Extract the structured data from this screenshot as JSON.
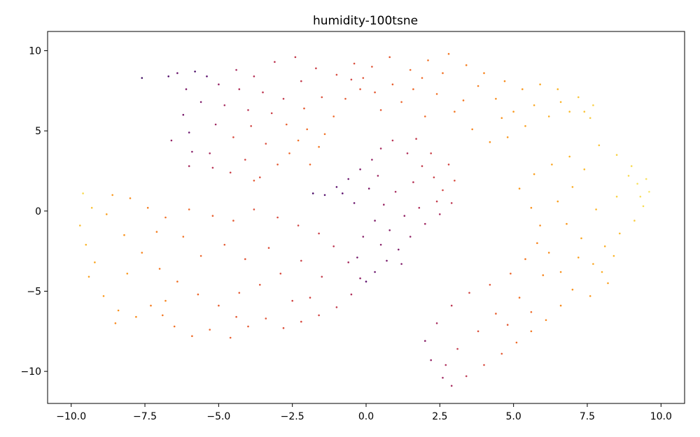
{
  "chart_data": {
    "type": "scatter",
    "title": "humidity-100tsne",
    "xlabel": "",
    "ylabel": "",
    "xlim": [
      -10.8,
      10.8
    ],
    "ylim": [
      -12.0,
      11.2
    ],
    "x_ticks": [
      -10.0,
      -7.5,
      -5.0,
      -2.5,
      0.0,
      2.5,
      5.0,
      7.5,
      10.0
    ],
    "x_tick_labels": [
      "−10.0",
      "−7.5",
      "−5.0",
      "−2.5",
      "0.0",
      "2.5",
      "5.0",
      "7.5",
      "10.0"
    ],
    "y_ticks": [
      -10,
      -5,
      0,
      5,
      10
    ],
    "y_tick_labels": [
      "−10",
      "−5",
      "0",
      "5",
      "10"
    ],
    "grid": false,
    "legend": "none",
    "colormap": "inferno",
    "colormap_stops": [
      "#2d0b59",
      "#5c1370",
      "#8a226a",
      "#b5325a",
      "#d94c3e",
      "#ef6a2a",
      "#f98e1c",
      "#fbb325",
      "#f8de55",
      "#fcfda4"
    ],
    "series": [
      {
        "cluster": "upper-left arc",
        "points": [
          [
            -7.6,
            8.3
          ],
          [
            -6.4,
            8.6
          ],
          [
            -6.1,
            7.6
          ],
          [
            -5.8,
            8.7
          ],
          [
            -5.4,
            8.4
          ],
          [
            -6.2,
            6.0
          ],
          [
            -6.0,
            4.9
          ],
          [
            -6.6,
            4.4
          ],
          [
            -5.9,
            3.7
          ],
          [
            -6.0,
            2.8
          ],
          [
            -5.2,
            2.7
          ],
          [
            -4.6,
            2.4
          ],
          [
            -4.1,
            3.2
          ],
          [
            -3.6,
            2.1
          ],
          [
            -3.0,
            2.9
          ],
          [
            -2.6,
            3.6
          ],
          [
            -2.3,
            4.4
          ],
          [
            -2.0,
            5.1
          ],
          [
            -1.6,
            4.0
          ],
          [
            -1.4,
            4.8
          ],
          [
            -1.1,
            5.9
          ],
          [
            -0.7,
            7.0
          ],
          [
            -0.2,
            7.6
          ],
          [
            -1.0,
            8.5
          ],
          [
            -1.7,
            8.9
          ],
          [
            -2.4,
            9.6
          ],
          [
            -3.1,
            9.3
          ],
          [
            -3.8,
            8.4
          ],
          [
            -4.3,
            7.6
          ],
          [
            -4.8,
            6.6
          ],
          [
            -5.1,
            5.4
          ],
          [
            -4.5,
            4.6
          ],
          [
            -3.9,
            5.3
          ],
          [
            -3.2,
            6.1
          ],
          [
            -2.8,
            7.0
          ],
          [
            -3.5,
            7.4
          ],
          [
            -4.0,
            6.3
          ],
          [
            -2.1,
            6.4
          ],
          [
            -1.5,
            7.1
          ],
          [
            -0.5,
            8.2
          ],
          [
            -5.6,
            6.8
          ],
          [
            -5.0,
            7.9
          ],
          [
            -4.4,
            8.8
          ],
          [
            -3.4,
            4.2
          ],
          [
            -2.7,
            5.4
          ],
          [
            -1.9,
            2.9
          ],
          [
            -6.7,
            8.4
          ],
          [
            -5.3,
            3.6
          ],
          [
            -3.8,
            1.9
          ],
          [
            -2.2,
            8.1
          ]
        ]
      },
      {
        "cluster": "upper arch",
        "points": [
          [
            -0.4,
            9.2
          ],
          [
            0.2,
            9.0
          ],
          [
            0.8,
            9.6
          ],
          [
            1.5,
            8.8
          ],
          [
            2.1,
            9.4
          ],
          [
            2.8,
            9.8
          ],
          [
            3.4,
            9.1
          ],
          [
            4.0,
            8.6
          ],
          [
            4.7,
            8.1
          ],
          [
            5.3,
            7.6
          ],
          [
            5.9,
            7.9
          ],
          [
            6.5,
            7.6
          ],
          [
            7.2,
            7.1
          ],
          [
            7.7,
            6.6
          ],
          [
            7.6,
            5.8
          ],
          [
            6.9,
            6.2
          ],
          [
            6.2,
            5.9
          ],
          [
            5.4,
            5.3
          ],
          [
            4.8,
            4.6
          ],
          [
            4.2,
            4.3
          ],
          [
            3.6,
            5.1
          ],
          [
            3.0,
            6.2
          ],
          [
            2.4,
            7.3
          ],
          [
            1.6,
            7.6
          ],
          [
            0.9,
            7.9
          ],
          [
            0.3,
            7.4
          ],
          [
            -0.1,
            8.3
          ],
          [
            1.2,
            6.8
          ],
          [
            2.0,
            5.9
          ],
          [
            3.3,
            6.9
          ],
          [
            4.4,
            7.0
          ],
          [
            5.0,
            6.2
          ],
          [
            5.7,
            6.6
          ],
          [
            6.6,
            6.8
          ],
          [
            7.4,
            6.2
          ],
          [
            1.9,
            8.3
          ],
          [
            2.6,
            8.6
          ],
          [
            3.8,
            7.8
          ],
          [
            4.6,
            5.8
          ],
          [
            0.5,
            6.3
          ]
        ]
      },
      {
        "cluster": "center spine",
        "points": [
          [
            -1.8,
            1.1
          ],
          [
            -1.4,
            1.0
          ],
          [
            -1.0,
            1.5
          ],
          [
            -0.6,
            2.0
          ],
          [
            -0.2,
            2.6
          ],
          [
            0.2,
            3.2
          ],
          [
            0.5,
            3.9
          ],
          [
            0.9,
            4.4
          ],
          [
            1.4,
            3.6
          ],
          [
            1.9,
            2.8
          ],
          [
            2.3,
            2.1
          ],
          [
            2.6,
            1.3
          ],
          [
            2.9,
            0.5
          ],
          [
            2.5,
            -0.2
          ],
          [
            2.0,
            -0.8
          ],
          [
            1.5,
            -1.6
          ],
          [
            1.1,
            -2.4
          ],
          [
            0.7,
            -3.1
          ],
          [
            0.3,
            -3.8
          ],
          [
            0.0,
            -4.4
          ],
          [
            -0.3,
            -2.9
          ],
          [
            -0.1,
            -1.6
          ],
          [
            0.3,
            -0.6
          ],
          [
            0.6,
            0.4
          ],
          [
            1.0,
            1.2
          ],
          [
            1.6,
            1.8
          ],
          [
            0.1,
            1.4
          ],
          [
            -0.4,
            0.5
          ],
          [
            1.3,
            -0.3
          ],
          [
            0.8,
            -1.2
          ],
          [
            2.2,
            3.6
          ],
          [
            2.8,
            2.9
          ],
          [
            3.0,
            1.9
          ],
          [
            1.7,
            4.5
          ],
          [
            0.4,
            2.2
          ],
          [
            -0.8,
            1.1
          ],
          [
            1.2,
            -3.3
          ],
          [
            0.5,
            -2.1
          ],
          [
            2.4,
            0.6
          ],
          [
            1.8,
            0.2
          ]
        ]
      },
      {
        "cluster": "lower-left band",
        "points": [
          [
            -9.6,
            1.1
          ],
          [
            -9.3,
            0.2
          ],
          [
            -9.7,
            -0.9
          ],
          [
            -9.5,
            -2.1
          ],
          [
            -9.2,
            -3.2
          ],
          [
            -9.4,
            -4.1
          ],
          [
            -8.9,
            -5.3
          ],
          [
            -8.4,
            -6.2
          ],
          [
            -8.5,
            -7.0
          ],
          [
            -7.8,
            -6.6
          ],
          [
            -7.3,
            -5.9
          ],
          [
            -6.9,
            -6.5
          ],
          [
            -6.5,
            -7.2
          ],
          [
            -5.9,
            -7.8
          ],
          [
            -5.3,
            -7.4
          ],
          [
            -4.6,
            -7.9
          ],
          [
            -4.0,
            -7.2
          ],
          [
            -3.4,
            -6.7
          ],
          [
            -2.8,
            -7.3
          ],
          [
            -2.2,
            -6.9
          ],
          [
            -1.6,
            -6.5
          ],
          [
            -1.0,
            -6.0
          ],
          [
            -0.5,
            -5.2
          ],
          [
            -0.2,
            -4.2
          ],
          [
            -0.6,
            -3.2
          ],
          [
            -1.1,
            -2.2
          ],
          [
            -1.6,
            -1.4
          ],
          [
            -2.3,
            -0.9
          ],
          [
            -3.0,
            -0.4
          ],
          [
            -3.8,
            0.1
          ],
          [
            -4.5,
            -0.6
          ],
          [
            -5.2,
            -0.3
          ],
          [
            -6.0,
            0.1
          ],
          [
            -6.8,
            -0.4
          ],
          [
            -7.4,
            0.2
          ],
          [
            -8.0,
            0.8
          ],
          [
            -8.6,
            1.0
          ],
          [
            -8.8,
            -0.2
          ],
          [
            -8.2,
            -1.5
          ],
          [
            -7.6,
            -2.6
          ],
          [
            -7.0,
            -3.6
          ],
          [
            -6.4,
            -4.4
          ],
          [
            -5.7,
            -5.2
          ],
          [
            -5.0,
            -5.9
          ],
          [
            -4.3,
            -5.1
          ],
          [
            -3.6,
            -4.6
          ],
          [
            -2.9,
            -3.9
          ],
          [
            -2.2,
            -3.1
          ],
          [
            -1.5,
            -4.1
          ],
          [
            -2.5,
            -5.6
          ],
          [
            -3.3,
            -2.3
          ],
          [
            -4.1,
            -3.0
          ],
          [
            -4.8,
            -2.1
          ],
          [
            -5.6,
            -2.8
          ],
          [
            -6.2,
            -1.6
          ],
          [
            -7.1,
            -1.3
          ],
          [
            -8.1,
            -3.9
          ],
          [
            -6.8,
            -5.6
          ],
          [
            -4.4,
            -6.6
          ],
          [
            -1.9,
            -5.4
          ]
        ]
      },
      {
        "cluster": "right wing",
        "points": [
          [
            7.9,
            4.1
          ],
          [
            8.5,
            3.5
          ],
          [
            9.0,
            2.8
          ],
          [
            9.5,
            2.0
          ],
          [
            9.6,
            1.2
          ],
          [
            9.4,
            0.3
          ],
          [
            9.1,
            -0.6
          ],
          [
            8.6,
            -1.4
          ],
          [
            8.1,
            -2.2
          ],
          [
            7.7,
            -3.3
          ],
          [
            8.2,
            -4.5
          ],
          [
            7.6,
            -5.3
          ],
          [
            7.0,
            -4.9
          ],
          [
            6.6,
            -5.9
          ],
          [
            6.1,
            -6.8
          ],
          [
            5.6,
            -7.5
          ],
          [
            5.1,
            -8.2
          ],
          [
            4.6,
            -8.9
          ],
          [
            4.0,
            -9.6
          ],
          [
            3.4,
            -10.3
          ],
          [
            2.9,
            -10.9
          ],
          [
            2.6,
            -10.4
          ],
          [
            2.2,
            -9.3
          ],
          [
            2.0,
            -8.1
          ],
          [
            2.4,
            -7.0
          ],
          [
            2.9,
            -5.9
          ],
          [
            3.5,
            -5.1
          ],
          [
            4.2,
            -4.6
          ],
          [
            4.9,
            -3.9
          ],
          [
            5.4,
            -3.0
          ],
          [
            5.8,
            -2.0
          ],
          [
            5.9,
            -0.9
          ],
          [
            5.6,
            0.2
          ],
          [
            5.2,
            1.4
          ],
          [
            5.7,
            2.3
          ],
          [
            6.3,
            2.9
          ],
          [
            6.9,
            3.4
          ],
          [
            7.4,
            2.6
          ],
          [
            7.0,
            1.5
          ],
          [
            6.5,
            0.6
          ],
          [
            6.8,
            -0.8
          ],
          [
            7.3,
            -1.7
          ],
          [
            8.5,
            0.9
          ],
          [
            9.2,
            1.7
          ],
          [
            8.9,
            2.2
          ],
          [
            7.8,
            0.1
          ],
          [
            6.2,
            -2.6
          ],
          [
            6.0,
            -4.0
          ],
          [
            5.2,
            -5.4
          ],
          [
            4.4,
            -6.4
          ],
          [
            3.8,
            -7.5
          ],
          [
            3.1,
            -8.6
          ],
          [
            2.7,
            -9.6
          ],
          [
            4.8,
            -7.1
          ],
          [
            5.6,
            -6.3
          ],
          [
            6.6,
            -3.8
          ],
          [
            7.2,
            -2.9
          ],
          [
            8.4,
            -2.8
          ],
          [
            8.0,
            -3.8
          ],
          [
            9.3,
            0.9
          ]
        ]
      }
    ],
    "color_values": [
      [
        0.05,
        0.15,
        0.2,
        0.08,
        0.12,
        0.18,
        0.15,
        0.25,
        0.22,
        0.3,
        0.35,
        0.4,
        0.42,
        0.45,
        0.5,
        0.55,
        0.58,
        0.56,
        0.6,
        0.58,
        0.55,
        0.5,
        0.48,
        0.44,
        0.4,
        0.38,
        0.36,
        0.34,
        0.32,
        0.3,
        0.28,
        0.44,
        0.42,
        0.4,
        0.38,
        0.36,
        0.35,
        0.5,
        0.46,
        0.42,
        0.2,
        0.25,
        0.3,
        0.45,
        0.52,
        0.55,
        0.1,
        0.3,
        0.5,
        0.38
      ],
      [
        0.45,
        0.48,
        0.5,
        0.55,
        0.58,
        0.6,
        0.62,
        0.64,
        0.66,
        0.7,
        0.74,
        0.78,
        0.82,
        0.85,
        0.84,
        0.8,
        0.76,
        0.72,
        0.7,
        0.68,
        0.64,
        0.6,
        0.58,
        0.55,
        0.52,
        0.5,
        0.48,
        0.54,
        0.56,
        0.6,
        0.66,
        0.7,
        0.74,
        0.78,
        0.82,
        0.56,
        0.58,
        0.62,
        0.68,
        0.5
      ],
      [
        0.08,
        0.1,
        0.12,
        0.15,
        0.2,
        0.25,
        0.3,
        0.35,
        0.32,
        0.38,
        0.4,
        0.42,
        0.36,
        0.3,
        0.28,
        0.24,
        0.2,
        0.18,
        0.15,
        0.12,
        0.18,
        0.22,
        0.2,
        0.26,
        0.3,
        0.34,
        0.2,
        0.15,
        0.25,
        0.22,
        0.4,
        0.42,
        0.44,
        0.38,
        0.28,
        0.12,
        0.2,
        0.22,
        0.38,
        0.32
      ],
      [
        0.88,
        0.82,
        0.8,
        0.78,
        0.74,
        0.72,
        0.7,
        0.68,
        0.65,
        0.66,
        0.62,
        0.6,
        0.58,
        0.56,
        0.54,
        0.52,
        0.5,
        0.48,
        0.46,
        0.44,
        0.42,
        0.38,
        0.32,
        0.24,
        0.3,
        0.36,
        0.4,
        0.42,
        0.44,
        0.46,
        0.5,
        0.52,
        0.55,
        0.58,
        0.62,
        0.66,
        0.7,
        0.72,
        0.68,
        0.64,
        0.6,
        0.58,
        0.55,
        0.52,
        0.5,
        0.47,
        0.44,
        0.4,
        0.38,
        0.42,
        0.46,
        0.48,
        0.5,
        0.54,
        0.58,
        0.62,
        0.7,
        0.64,
        0.5,
        0.42
      ],
      [
        0.82,
        0.86,
        0.88,
        0.9,
        0.92,
        0.88,
        0.84,
        0.8,
        0.76,
        0.74,
        0.72,
        0.7,
        0.68,
        0.66,
        0.64,
        0.6,
        0.56,
        0.5,
        0.44,
        0.36,
        0.3,
        0.28,
        0.25,
        0.22,
        0.3,
        0.36,
        0.42,
        0.48,
        0.54,
        0.6,
        0.64,
        0.66,
        0.68,
        0.7,
        0.72,
        0.74,
        0.78,
        0.8,
        0.76,
        0.72,
        0.7,
        0.74,
        0.86,
        0.9,
        0.88,
        0.78,
        0.66,
        0.64,
        0.58,
        0.52,
        0.46,
        0.38,
        0.32,
        0.5,
        0.56,
        0.68,
        0.72,
        0.78,
        0.76,
        0.9
      ]
    ]
  }
}
